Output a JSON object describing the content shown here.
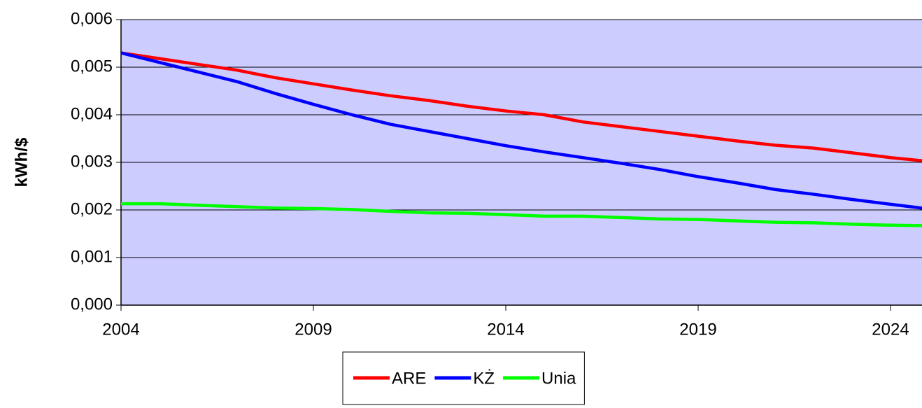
{
  "chart_data": {
    "type": "line",
    "y_label": "kWh/$",
    "x": [
      2004,
      2005,
      2006,
      2007,
      2008,
      2009,
      2010,
      2011,
      2012,
      2013,
      2014,
      2015,
      2016,
      2017,
      2018,
      2019,
      2020,
      2021,
      2022,
      2023,
      2024,
      2025
    ],
    "series": [
      {
        "name": "ARE",
        "color": "#ff0000",
        "values": [
          0.0053,
          0.00518,
          0.00506,
          0.00494,
          0.00478,
          0.00465,
          0.00452,
          0.0044,
          0.0043,
          0.00418,
          0.00408,
          0.004,
          0.00385,
          0.00375,
          0.00365,
          0.00355,
          0.00345,
          0.00336,
          0.0033,
          0.0032,
          0.0031,
          0.00302
        ]
      },
      {
        "name": "KŻ",
        "color": "#0000ff",
        "values": [
          0.0053,
          0.0051,
          0.0049,
          0.0047,
          0.00445,
          0.00422,
          0.004,
          0.0038,
          0.00365,
          0.0035,
          0.00335,
          0.00322,
          0.0031,
          0.00298,
          0.00285,
          0.0027,
          0.00257,
          0.00243,
          0.00233,
          0.00222,
          0.00212,
          0.00202
        ]
      },
      {
        "name": "Unia",
        "color": "#00ff00",
        "values": [
          0.00213,
          0.00213,
          0.0021,
          0.00207,
          0.00204,
          0.00203,
          0.00201,
          0.00197,
          0.00194,
          0.00193,
          0.0019,
          0.00187,
          0.00187,
          0.00184,
          0.00181,
          0.0018,
          0.00177,
          0.00174,
          0.00173,
          0.0017,
          0.00168,
          0.00167
        ]
      }
    ],
    "xlim": [
      2004,
      2025
    ],
    "xticks": [
      2004,
      2009,
      2014,
      2019,
      2024
    ],
    "ylim": [
      0,
      0.006
    ],
    "yticks": [
      {
        "value": 0,
        "label": "0,000"
      },
      {
        "value": 0.001,
        "label": "0,001"
      },
      {
        "value": 0.002,
        "label": "0,002"
      },
      {
        "value": 0.003,
        "label": "0,003"
      },
      {
        "value": 0.004,
        "label": "0,004"
      },
      {
        "value": 0.005,
        "label": "0,005"
      },
      {
        "value": 0.006,
        "label": "0,006"
      }
    ],
    "grid": true,
    "background": "#ccccff",
    "legend": "bottom"
  }
}
